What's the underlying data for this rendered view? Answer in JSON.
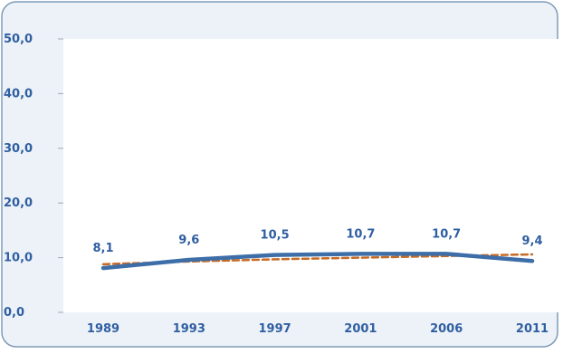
{
  "chart_data": {
    "type": "line",
    "title": "",
    "xlabel": "",
    "ylabel": "",
    "categories": [
      "1989",
      "1993",
      "1997",
      "2001",
      "2006",
      "2011"
    ],
    "y_ticks": [
      "0,0",
      "10,0",
      "20,0",
      "30,0",
      "40,0",
      "50,0"
    ],
    "ylim": [
      0,
      50
    ],
    "grid": false,
    "legend": "none",
    "series": [
      {
        "style": "solid",
        "color": "#3d6ea8",
        "values": [
          8.1,
          9.6,
          10.5,
          10.7,
          10.7,
          9.4
        ],
        "labels": [
          "8,1",
          "9,6",
          "10,5",
          "10,7",
          "10,7",
          "9,4"
        ]
      },
      {
        "style": "dashed",
        "color": "#c86b25",
        "kind": "trend",
        "values": [
          8.8,
          9.3,
          9.7,
          10.0,
          10.3,
          10.6
        ]
      }
    ]
  },
  "colors": {
    "axis_label": "#2f5fa1",
    "frame_border": "#7e9bb8",
    "frame_fill": "#edf2f8",
    "plot_fill": "#ffffff"
  }
}
